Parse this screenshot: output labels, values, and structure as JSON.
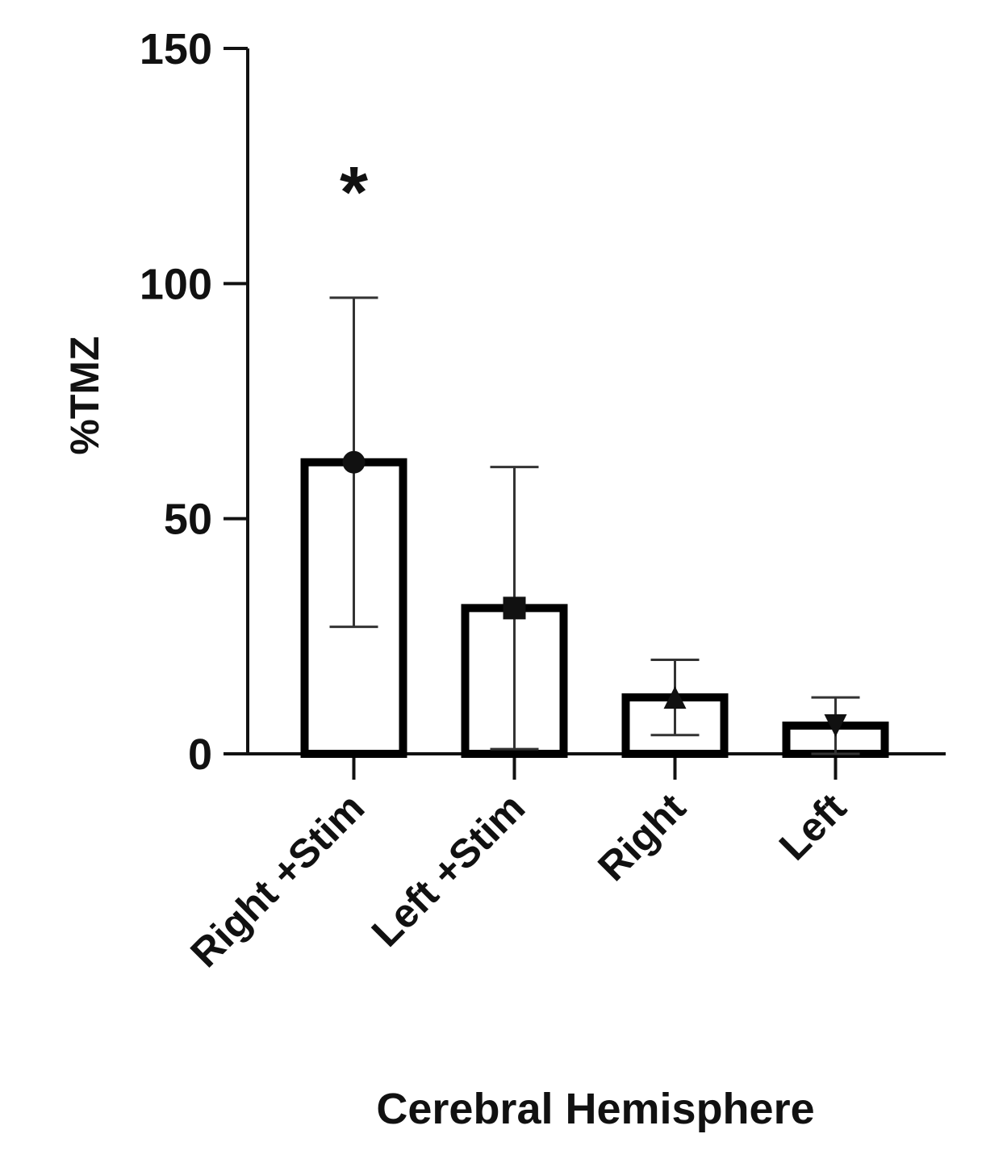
{
  "chart_data": {
    "type": "bar",
    "x_label": "Cerebral Hemisphere",
    "y_label": "%TMZ",
    "categories": [
      "Right +Stim",
      "Left +Stim",
      "Right",
      "Left"
    ],
    "values": [
      62,
      31,
      12,
      6
    ],
    "errors": [
      35,
      30,
      8,
      6
    ],
    "markers": [
      "circle",
      "square",
      "triangle-up",
      "triangle-down"
    ],
    "annotations": [
      "*",
      null,
      null,
      null
    ],
    "color": "#000000",
    "ylim": [
      0,
      150
    ],
    "yticks": [
      0,
      50,
      100,
      150
    ],
    "grid": false
  }
}
